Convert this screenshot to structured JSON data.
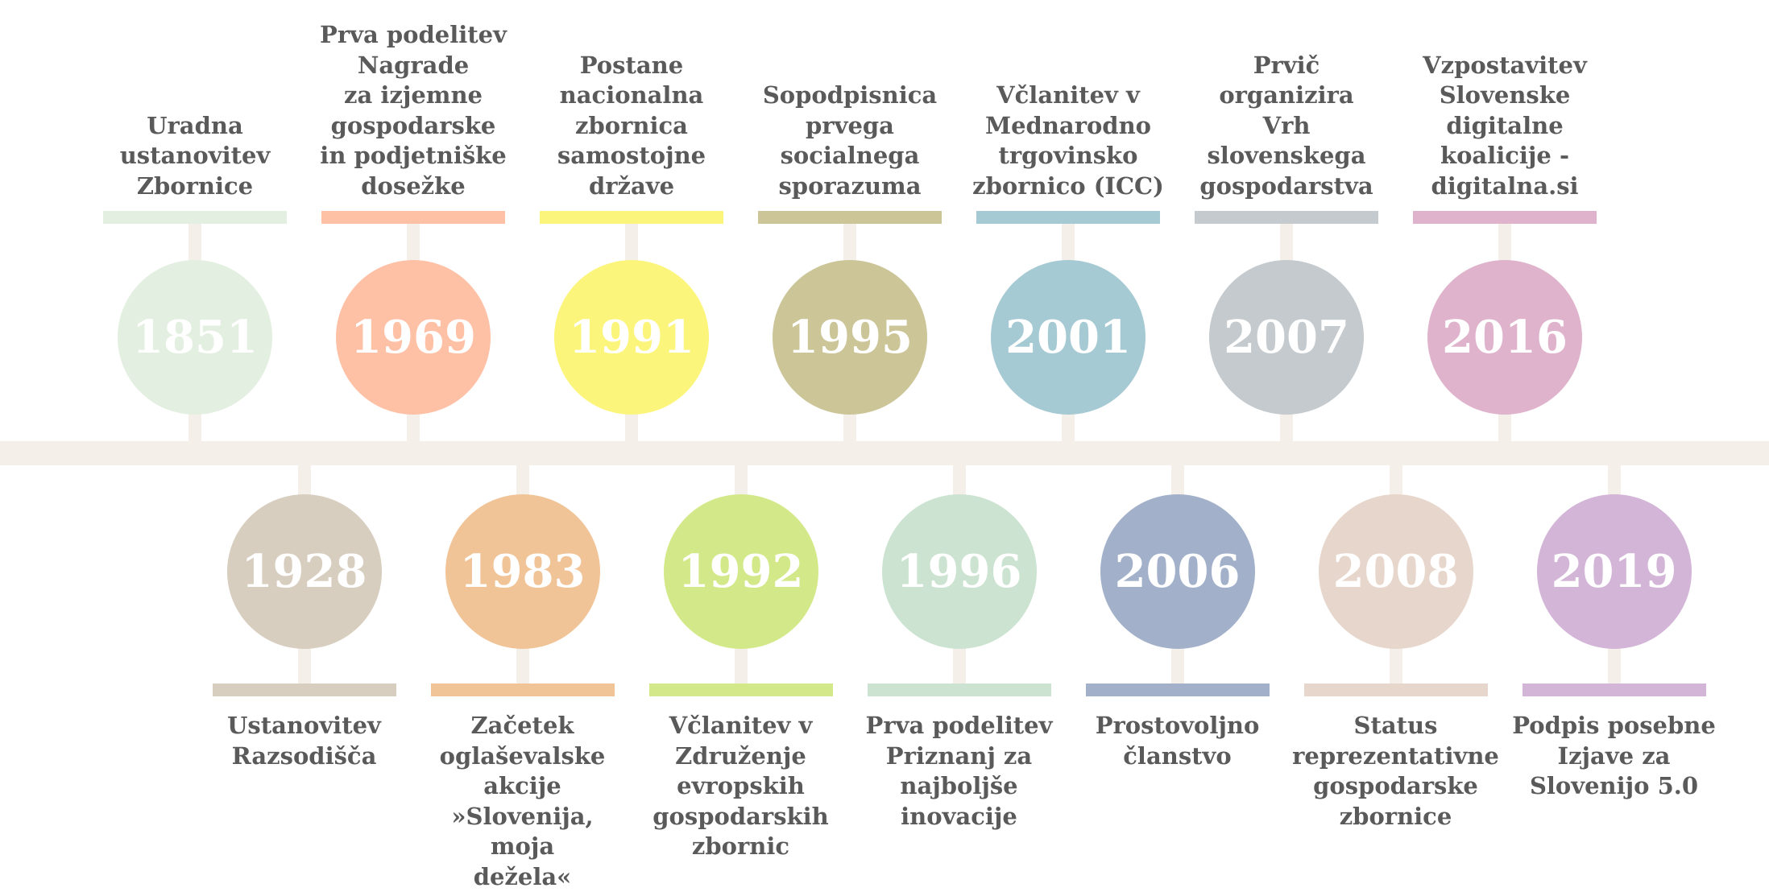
{
  "events": [
    {
      "year": "1851",
      "text": "Uradna\nustanovitev\nZbornice",
      "color": "#e3efe0",
      "row": "top"
    },
    {
      "year": "1928",
      "text": "Ustanovitev\nRazsodišča",
      "color": "#d8cebf",
      "row": "bottom"
    },
    {
      "year": "1969",
      "text": "Prva podelitev\nNagrade\nza izjemne\ngospodarske\nin podjetniške\ndosežke",
      "color": "#ffc1a6",
      "row": "top"
    },
    {
      "year": "1983",
      "text": "Začetek\noglaševalske\nakcije\n»Slovenija, moja\ndežela«",
      "color": "#f1c498",
      "row": "bottom"
    },
    {
      "year": "1991",
      "text": "Postane\nnacionalna\nzbornica\nsamostojne\ndržave",
      "color": "#fcf57c",
      "row": "top"
    },
    {
      "year": "1992",
      "text": "Včlanitev v\nZdruženje\nevropskih\ngospodarskih\nzbornic",
      "color": "#d3e989",
      "row": "bottom"
    },
    {
      "year": "1995",
      "text": "Sopodpisnica\nprvega\nsocialnega\nsporazuma",
      "color": "#cbc597",
      "row": "top"
    },
    {
      "year": "1996",
      "text": "Prva podelitev\nPriznanj za\nnajboljše\ninovacije",
      "color": "#cde3d1",
      "row": "bottom"
    },
    {
      "year": "2001",
      "text": "Včlanitev v\nMednarodno\ntrgovinsko\nzbornico (ICC)",
      "color": "#a6cad3",
      "row": "top"
    },
    {
      "year": "2006",
      "text": "Prostovoljno\nčlanstvo",
      "color": "#a2b1c9",
      "row": "bottom"
    },
    {
      "year": "2007",
      "text": "Prvič organizira\nVrh slovenskega\ngospodarstva",
      "color": "#c4cacd",
      "row": "top"
    },
    {
      "year": "2008",
      "text": "Status\nreprezentativne\ngospodarske\nzbornice",
      "color": "#e7d6cb",
      "row": "bottom"
    },
    {
      "year": "2016",
      "text": "Vzpostavitev\nSlovenske\ndigitalne\nkoalicije -\ndigitalna.si",
      "color": "#e0b3cc",
      "row": "top"
    },
    {
      "year": "2019",
      "text": "Podpis posebne\nIzjave za\nSlovenijo 5.0",
      "color": "#d3b5d7",
      "row": "bottom"
    }
  ]
}
